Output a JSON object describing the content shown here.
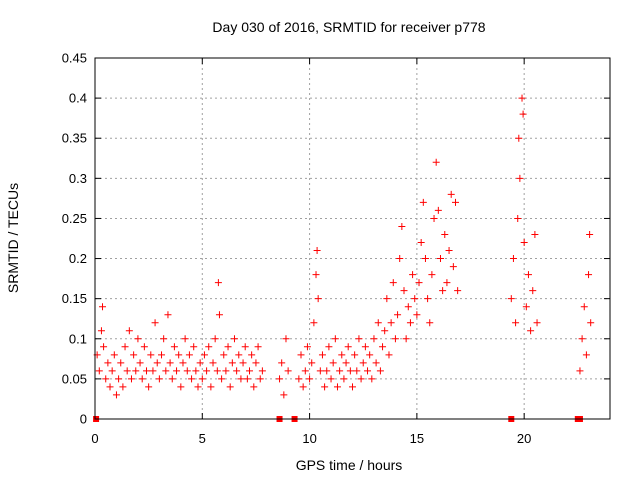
{
  "chart_data": {
    "type": "scatter",
    "title": "Day 030 of 2016, SRMTID for receiver p778",
    "xlabel": "GPS time / hours",
    "ylabel": "SRMTID / TECUs",
    "xlim": [
      0,
      24
    ],
    "ylim": [
      0,
      0.45
    ],
    "xticks": [
      0,
      5,
      10,
      15,
      20
    ],
    "xtick_labels": [
      "0",
      "5",
      "10",
      "15",
      "20"
    ],
    "yticks": [
      0,
      0.05,
      0.1,
      0.15,
      0.2,
      0.25,
      0.3,
      0.35,
      0.4,
      0.45
    ],
    "ytick_labels": [
      "0",
      "0.05",
      "0.1",
      "0.15",
      "0.2",
      "0.25",
      "0.3",
      "0.35",
      "0.4",
      "0.45"
    ],
    "grid": true,
    "marker": "+",
    "color": "#ff0000",
    "series": [
      {
        "name": "SRMTID",
        "points": [
          [
            0.1,
            0.08
          ],
          [
            0.2,
            0.06
          ],
          [
            0.3,
            0.11
          ],
          [
            0.35,
            0.14
          ],
          [
            0.4,
            0.09
          ],
          [
            0.5,
            0.05
          ],
          [
            0.6,
            0.07
          ],
          [
            0.7,
            0.04
          ],
          [
            0.8,
            0.06
          ],
          [
            0.9,
            0.08
          ],
          [
            1.0,
            0.03
          ],
          [
            1.1,
            0.05
          ],
          [
            1.2,
            0.07
          ],
          [
            1.3,
            0.04
          ],
          [
            1.4,
            0.09
          ],
          [
            1.5,
            0.06
          ],
          [
            1.6,
            0.11
          ],
          [
            1.7,
            0.05
          ],
          [
            1.8,
            0.08
          ],
          [
            1.9,
            0.06
          ],
          [
            2.0,
            0.1
          ],
          [
            2.1,
            0.07
          ],
          [
            2.2,
            0.05
          ],
          [
            2.3,
            0.09
          ],
          [
            2.4,
            0.06
          ],
          [
            2.5,
            0.04
          ],
          [
            2.6,
            0.08
          ],
          [
            2.7,
            0.06
          ],
          [
            2.8,
            0.12
          ],
          [
            2.9,
            0.07
          ],
          [
            3.0,
            0.05
          ],
          [
            3.1,
            0.08
          ],
          [
            3.2,
            0.1
          ],
          [
            3.3,
            0.06
          ],
          [
            3.4,
            0.13
          ],
          [
            3.5,
            0.07
          ],
          [
            3.6,
            0.05
          ],
          [
            3.7,
            0.09
          ],
          [
            3.8,
            0.06
          ],
          [
            3.9,
            0.08
          ],
          [
            4.0,
            0.04
          ],
          [
            4.1,
            0.07
          ],
          [
            4.2,
            0.1
          ],
          [
            4.3,
            0.06
          ],
          [
            4.4,
            0.08
          ],
          [
            4.5,
            0.05
          ],
          [
            4.6,
            0.09
          ],
          [
            4.7,
            0.06
          ],
          [
            4.8,
            0.04
          ],
          [
            4.9,
            0.07
          ],
          [
            5.0,
            0.05
          ],
          [
            5.1,
            0.08
          ],
          [
            5.2,
            0.06
          ],
          [
            5.3,
            0.09
          ],
          [
            5.4,
            0.04
          ],
          [
            5.5,
            0.07
          ],
          [
            5.6,
            0.1
          ],
          [
            5.7,
            0.06
          ],
          [
            5.75,
            0.17
          ],
          [
            5.8,
            0.13
          ],
          [
            5.9,
            0.05
          ],
          [
            6.0,
            0.08
          ],
          [
            6.1,
            0.06
          ],
          [
            6.2,
            0.09
          ],
          [
            6.3,
            0.04
          ],
          [
            6.4,
            0.07
          ],
          [
            6.5,
            0.1
          ],
          [
            6.6,
            0.06
          ],
          [
            6.7,
            0.08
          ],
          [
            6.8,
            0.05
          ],
          [
            6.9,
            0.07
          ],
          [
            7.0,
            0.09
          ],
          [
            7.1,
            0.05
          ],
          [
            7.2,
            0.06
          ],
          [
            7.3,
            0.08
          ],
          [
            7.4,
            0.04
          ],
          [
            7.5,
            0.07
          ],
          [
            7.6,
            0.09
          ],
          [
            7.7,
            0.05
          ],
          [
            7.8,
            0.06
          ],
          [
            8.6,
            0.05
          ],
          [
            8.7,
            0.07
          ],
          [
            8.8,
            0.03
          ],
          [
            8.9,
            0.1
          ],
          [
            9.0,
            0.06
          ],
          [
            9.5,
            0.05
          ],
          [
            9.6,
            0.08
          ],
          [
            9.7,
            0.04
          ],
          [
            9.8,
            0.06
          ],
          [
            9.9,
            0.09
          ],
          [
            10.0,
            0.05
          ],
          [
            10.1,
            0.07
          ],
          [
            10.2,
            0.12
          ],
          [
            10.3,
            0.18
          ],
          [
            10.35,
            0.21
          ],
          [
            10.4,
            0.15
          ],
          [
            10.5,
            0.06
          ],
          [
            10.6,
            0.08
          ],
          [
            10.7,
            0.04
          ],
          [
            10.8,
            0.06
          ],
          [
            10.9,
            0.09
          ],
          [
            11.0,
            0.05
          ],
          [
            11.1,
            0.07
          ],
          [
            11.2,
            0.1
          ],
          [
            11.3,
            0.04
          ],
          [
            11.4,
            0.06
          ],
          [
            11.5,
            0.08
          ],
          [
            11.6,
            0.05
          ],
          [
            11.7,
            0.07
          ],
          [
            11.8,
            0.09
          ],
          [
            11.9,
            0.06
          ],
          [
            12.0,
            0.04
          ],
          [
            12.1,
            0.08
          ],
          [
            12.2,
            0.06
          ],
          [
            12.3,
            0.1
          ],
          [
            12.4,
            0.05
          ],
          [
            12.5,
            0.07
          ],
          [
            12.6,
            0.09
          ],
          [
            12.7,
            0.06
          ],
          [
            12.8,
            0.08
          ],
          [
            12.9,
            0.05
          ],
          [
            13.0,
            0.1
          ],
          [
            13.1,
            0.07
          ],
          [
            13.2,
            0.12
          ],
          [
            13.3,
            0.06
          ],
          [
            13.4,
            0.09
          ],
          [
            13.5,
            0.11
          ],
          [
            13.6,
            0.15
          ],
          [
            13.7,
            0.08
          ],
          [
            13.8,
            0.12
          ],
          [
            13.9,
            0.17
          ],
          [
            14.0,
            0.1
          ],
          [
            14.1,
            0.13
          ],
          [
            14.2,
            0.2
          ],
          [
            14.3,
            0.24
          ],
          [
            14.4,
            0.16
          ],
          [
            14.5,
            0.1
          ],
          [
            14.6,
            0.14
          ],
          [
            14.7,
            0.12
          ],
          [
            14.8,
            0.18
          ],
          [
            14.9,
            0.15
          ],
          [
            15.0,
            0.13
          ],
          [
            15.1,
            0.17
          ],
          [
            15.2,
            0.22
          ],
          [
            15.3,
            0.27
          ],
          [
            15.4,
            0.2
          ],
          [
            15.5,
            0.15
          ],
          [
            15.6,
            0.12
          ],
          [
            15.7,
            0.18
          ],
          [
            15.8,
            0.25
          ],
          [
            15.9,
            0.32
          ],
          [
            16.0,
            0.26
          ],
          [
            16.1,
            0.2
          ],
          [
            16.2,
            0.16
          ],
          [
            16.3,
            0.23
          ],
          [
            16.4,
            0.17
          ],
          [
            16.5,
            0.21
          ],
          [
            16.6,
            0.28
          ],
          [
            16.7,
            0.19
          ],
          [
            16.8,
            0.27
          ],
          [
            16.9,
            0.16
          ],
          [
            19.4,
            0.15
          ],
          [
            19.5,
            0.2
          ],
          [
            19.6,
            0.12
          ],
          [
            19.7,
            0.25
          ],
          [
            19.75,
            0.35
          ],
          [
            19.8,
            0.3
          ],
          [
            19.9,
            0.4
          ],
          [
            19.95,
            0.38
          ],
          [
            20.0,
            0.22
          ],
          [
            20.1,
            0.14
          ],
          [
            20.2,
            0.18
          ],
          [
            20.3,
            0.11
          ],
          [
            20.4,
            0.16
          ],
          [
            20.5,
            0.23
          ],
          [
            20.6,
            0.12
          ],
          [
            22.6,
            0.06
          ],
          [
            22.7,
            0.1
          ],
          [
            22.8,
            0.14
          ],
          [
            22.9,
            0.08
          ],
          [
            23.0,
            0.18
          ],
          [
            23.05,
            0.23
          ],
          [
            23.1,
            0.12
          ]
        ]
      }
    ],
    "zero_markers_x": [
      0.05,
      8.6,
      9.3,
      19.4,
      22.5,
      22.6
    ]
  }
}
